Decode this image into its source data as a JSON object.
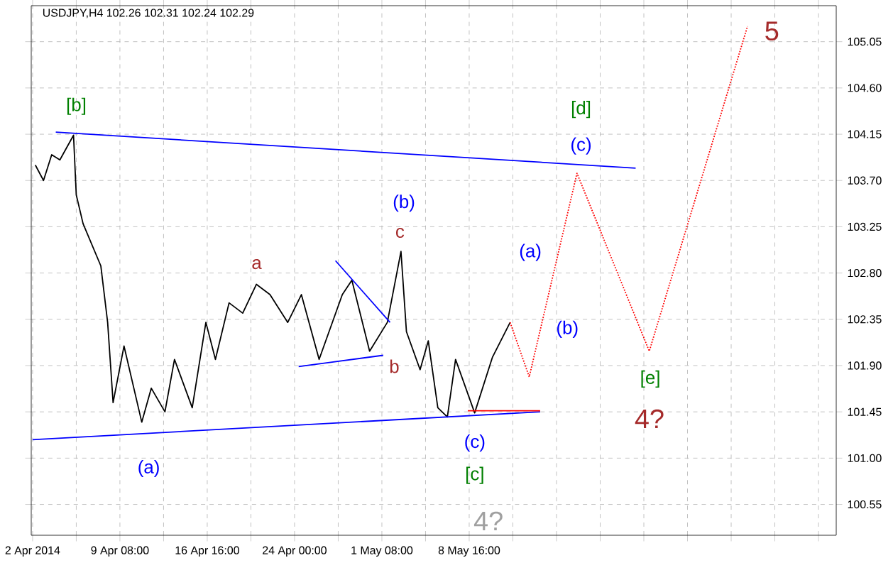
{
  "chart_data": {
    "type": "line",
    "title": "USDJPY,H4 102.26 102.31 102.24 102.29",
    "xlim": [
      "2014-04-01T21:15",
      "2014-06-08T11:45"
    ],
    "ylim": [
      100.25,
      105.4
    ],
    "xticks": [
      {
        "value": "2014-04-02T00:00",
        "label": "2 Apr 2014"
      },
      {
        "value": "2014-04-05T16:00",
        "label": null
      },
      {
        "value": "2014-04-09T08:00",
        "label": "9 Apr 08:00"
      },
      {
        "value": "2014-04-13T00:00",
        "label": null
      },
      {
        "value": "2014-04-16T16:00",
        "label": "16 Apr 16:00"
      },
      {
        "value": "2014-04-20T08:00",
        "label": null
      },
      {
        "value": "2014-04-24T00:00",
        "label": "24 Apr 00:00"
      },
      {
        "value": "2014-04-27T16:00",
        "label": null
      },
      {
        "value": "2014-05-01T08:00",
        "label": "1 May 08:00"
      },
      {
        "value": "2014-05-05T00:00",
        "label": null
      },
      {
        "value": "2014-05-08T16:00",
        "label": "8 May 16:00"
      },
      {
        "value": "2014-05-12T08:00",
        "label": null
      },
      {
        "value": "2014-05-16T00:00",
        "label": null
      },
      {
        "value": "2014-05-19T16:00",
        "label": null
      },
      {
        "value": "2014-05-23T08:00",
        "label": null
      },
      {
        "value": "2014-05-27T00:00",
        "label": null
      },
      {
        "value": "2014-05-30T16:00",
        "label": null
      },
      {
        "value": "2014-06-03T08:00",
        "label": null
      },
      {
        "value": "2014-06-07T00:00",
        "label": null
      }
    ],
    "yticks": [
      100.55,
      {
        "value": 101.0,
        "label": "101.00"
      },
      101.45,
      {
        "value": 101.9,
        "label": "101.90"
      },
      102.35,
      {
        "value": 102.8,
        "label": "102.80"
      },
      103.25,
      {
        "value": 103.7,
        "label": "103.70"
      },
      104.15,
      {
        "value": 104.6,
        "label": "104.60"
      },
      105.05
    ],
    "grid": true,
    "series": [
      {
        "color": "#000000",
        "x": [
          "2014-04-02T05:30",
          "2014-04-02T22:00",
          "2014-04-03T14:30",
          "2014-04-04T07:00",
          "2014-04-05T10:30",
          "2014-04-05T16:00",
          "2014-04-06T05:45",
          "2014-04-07T17:30",
          "2014-04-08T07:15",
          "2014-04-08T18:15",
          "2014-04-09T16:15",
          "2014-04-11T04:00",
          "2014-04-11T23:15",
          "2014-04-13T02:45",
          "2014-04-13T22:00",
          "2014-04-15T09:45",
          "2014-04-16T13:15",
          "2014-04-17T08:30",
          "2014-04-18T12:00",
          "2014-04-19T15:30",
          "2014-04-20T19:00",
          "2014-04-21T22:30",
          "2014-04-23T10:15",
          "2014-04-24T13:45",
          "2014-04-26T01:30",
          "2014-04-28T00:15",
          "2014-04-28T19:30",
          "2014-04-30T07:15",
          "2014-05-01T19:00",
          "2014-05-02T22:30",
          "2014-05-03T09:30",
          "2014-05-04T13:00",
          "2014-05-05T05:30",
          "2014-05-06T00:45",
          "2014-05-06T20:00",
          "2014-05-07T12:30",
          "2014-05-09T03:00",
          "2014-05-10T14:45",
          "2014-05-12T02:30"
        ],
        "values": [
          103.85,
          103.7,
          103.95,
          103.9,
          104.14,
          103.56,
          103.28,
          102.87,
          102.32,
          101.54,
          102.09,
          101.35,
          101.68,
          101.45,
          101.96,
          101.49,
          102.32,
          101.96,
          102.51,
          102.41,
          102.69,
          102.59,
          102.32,
          102.59,
          101.96,
          102.59,
          102.73,
          102.04,
          102.32,
          103.01,
          102.23,
          101.86,
          102.14,
          101.49,
          101.4,
          101.96,
          101.44,
          101.98,
          102.32
        ]
      },
      {
        "color": "#0000ff",
        "x": [
          "2014-04-03T22:45",
          "2014-05-22T15:30"
        ],
        "values": [
          104.17,
          103.82
        ]
      },
      {
        "color": "#0000ff",
        "x": [
          "2014-04-02T00:00",
          "2014-05-14T15:00"
        ],
        "values": [
          101.18,
          101.45
        ]
      },
      {
        "color": "#0000ff",
        "x": [
          "2014-04-27T10:30",
          "2014-05-02T00:30"
        ],
        "values": [
          102.92,
          102.32
        ]
      },
      {
        "color": "#0000ff",
        "x": [
          "2014-04-24T08:15",
          "2014-05-01T10:45"
        ],
        "values": [
          101.89,
          102.0
        ]
      },
      {
        "color": "#ff0000",
        "x": [
          "2014-05-08T13:15",
          "2014-05-14T15:00"
        ],
        "values": [
          101.46,
          101.46
        ]
      },
      {
        "color": "#ff0000",
        "line_style": "dotted",
        "x": [
          "2014-05-12T02:30",
          "2014-05-13T17:00",
          "2014-05-17T17:15",
          "2014-05-23T19:00",
          "2014-06-01T01:00"
        ],
        "values": [
          102.32,
          101.79,
          103.77,
          102.04,
          105.2
        ]
      }
    ],
    "annotations": [
      "[b]",
      "[d]",
      "(c)",
      "5",
      "(b)",
      "c",
      "a",
      "(a)",
      "(b)",
      "b",
      "[e]",
      "4?",
      "(c)",
      "[c]",
      "4?",
      "(a)"
    ]
  }
}
